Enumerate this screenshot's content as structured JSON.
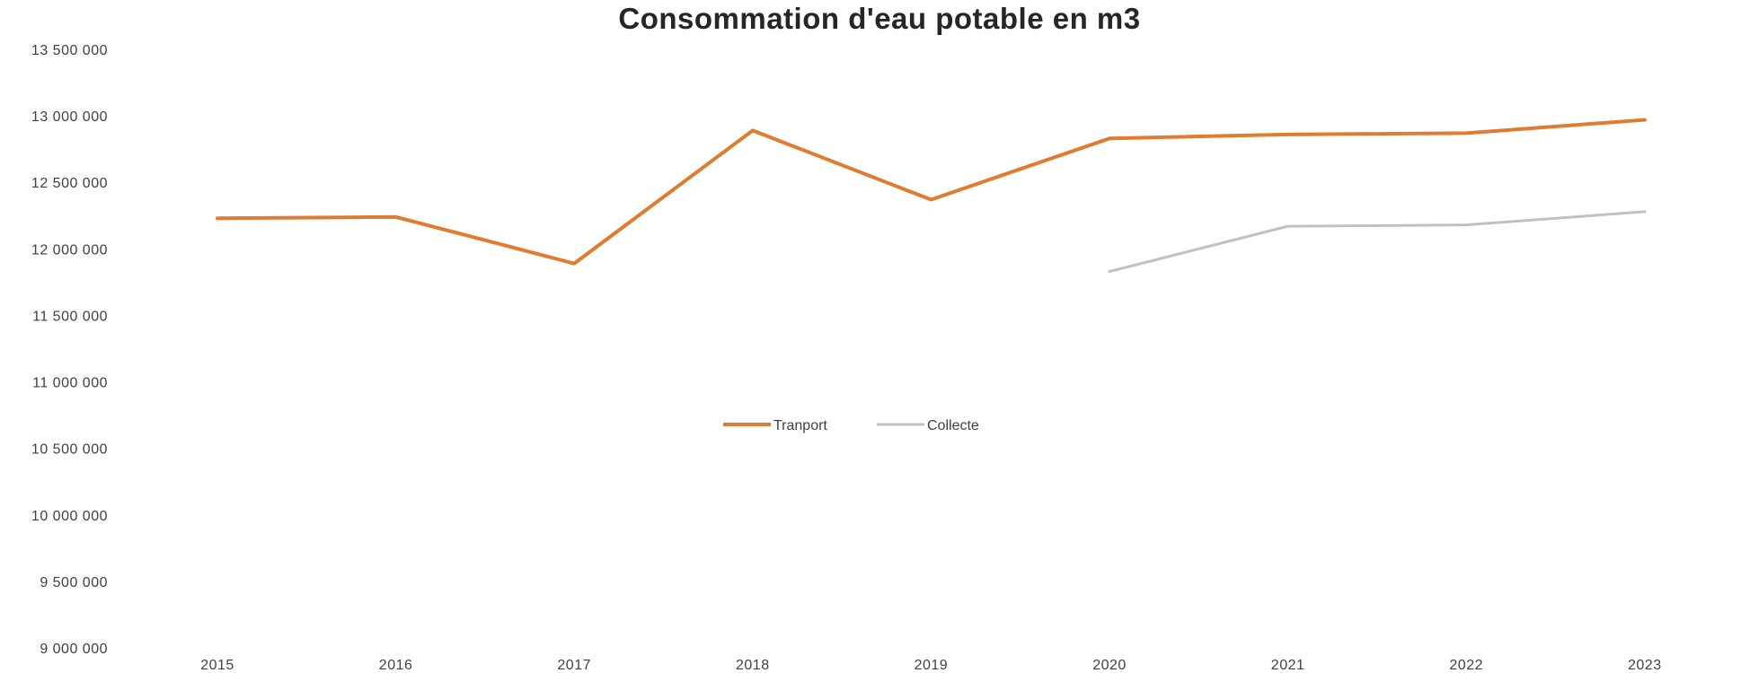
{
  "chart_data": {
    "type": "line",
    "title": "Consommation d'eau potable en m3",
    "xlabel": "",
    "ylabel": "",
    "categories": [
      "2015",
      "2016",
      "2017",
      "2018",
      "2019",
      "2020",
      "2021",
      "2022",
      "2023"
    ],
    "ylim": [
      9000000,
      13500000
    ],
    "yticks": [
      9000000,
      9500000,
      10000000,
      10500000,
      11000000,
      11500000,
      12000000,
      12500000,
      13000000,
      13500000
    ],
    "ytick_labels": [
      "9 000 000",
      "9 500 000",
      "10 000 000",
      "10 500 000",
      "11 000 000",
      "11 500 000",
      "12 000 000",
      "12 500 000",
      "13 000 000",
      "13 500 000"
    ],
    "grid": false,
    "legend_position": "center",
    "series": [
      {
        "name": "Tranport",
        "color": "#E07B2F",
        "values": [
          12230000,
          12240000,
          11890000,
          12890000,
          12370000,
          12830000,
          12860000,
          12870000,
          12970000
        ]
      },
      {
        "name": "Collecte",
        "color": "#C0C0C0",
        "values": [
          null,
          null,
          null,
          null,
          null,
          11830000,
          12170000,
          12180000,
          12280000
        ]
      }
    ]
  }
}
